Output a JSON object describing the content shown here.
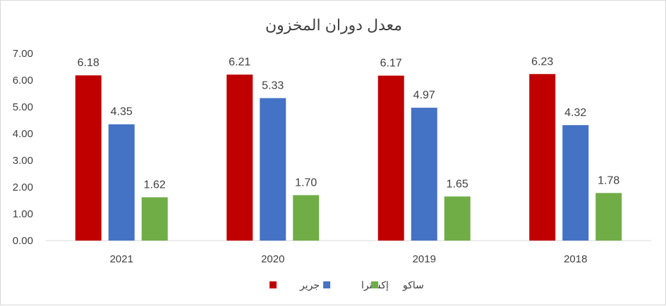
{
  "chart_data": {
    "type": "bar",
    "title": "معدل دوران المخزون",
    "xlabel": "",
    "ylabel": "",
    "categories": [
      "2021",
      "2020",
      "2019",
      "2018"
    ],
    "series": [
      {
        "name": "جرير",
        "color": "#c00000",
        "values": [
          6.18,
          6.21,
          6.17,
          6.23
        ],
        "labels": [
          "6.18",
          "6.21",
          "6.17",
          "6.23"
        ]
      },
      {
        "name": "إكسترا",
        "color": "#4472c4",
        "values": [
          4.35,
          5.33,
          4.97,
          4.32
        ],
        "labels": [
          "4.35",
          "5.33",
          "4.97",
          "4.32"
        ]
      },
      {
        "name": "ساكو",
        "color": "#70ad47",
        "values": [
          1.62,
          1.7,
          1.65,
          1.78
        ],
        "labels": [
          "1.62",
          "1.70",
          "1.65",
          "1.78"
        ]
      }
    ],
    "ylim": [
      0,
      7
    ],
    "yticks": [
      "0.00",
      "1.00",
      "2.00",
      "3.00",
      "4.00",
      "5.00",
      "6.00",
      "7.00"
    ],
    "grid": false,
    "legend_position": "bottom"
  }
}
